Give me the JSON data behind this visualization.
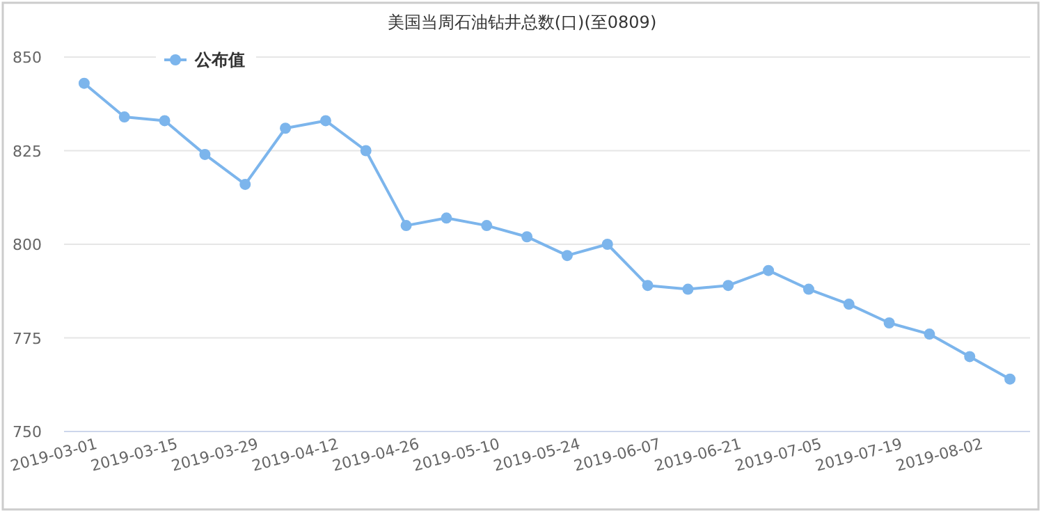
{
  "chart_data": {
    "type": "line",
    "title": "美国当周石油钻井总数(口)(至0809)",
    "categories": [
      "2019-03-01",
      null,
      "2019-03-15",
      null,
      "2019-03-29",
      null,
      "2019-04-12",
      null,
      "2019-04-26",
      null,
      "2019-05-10",
      null,
      "2019-05-24",
      null,
      "2019-06-07",
      null,
      "2019-06-21",
      null,
      "2019-07-05",
      null,
      "2019-07-19",
      null,
      "2019-08-02",
      null
    ],
    "series": [
      {
        "name": "公布值",
        "color": "#7cb5ec",
        "values": [
          843,
          834,
          833,
          824,
          816,
          831,
          833,
          825,
          805,
          807,
          805,
          802,
          797,
          800,
          789,
          788,
          789,
          793,
          788,
          784,
          779,
          776,
          770,
          764
        ]
      }
    ],
    "ylim": [
      750,
      850
    ],
    "yticks": [
      750,
      775,
      800,
      825,
      850
    ],
    "grid": "y",
    "legend": "top left",
    "marker": "circle",
    "line_style": "solid"
  }
}
